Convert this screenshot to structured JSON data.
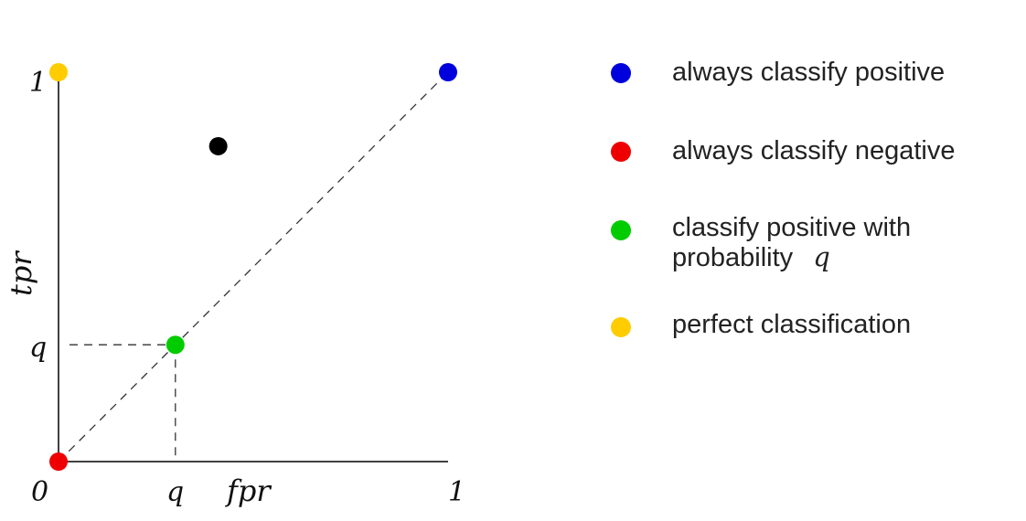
{
  "axes": {
    "x_label": "fpr",
    "y_label": "tpr",
    "x_ticks": {
      "origin": "0",
      "q": "q",
      "max": "1"
    },
    "y_ticks": {
      "q": "q",
      "max": "1"
    }
  },
  "points": [
    {
      "name": "always-classify-negative",
      "fpr": 0,
      "tpr": 0,
      "color": "#ee0000"
    },
    {
      "name": "classify-positive-with-probability-q",
      "fpr": 0.3,
      "tpr": 0.3,
      "color": "#00cc00"
    },
    {
      "name": "always-classify-positive",
      "fpr": 1,
      "tpr": 1,
      "color": "#0000dd"
    },
    {
      "name": "perfect-classification",
      "fpr": 0,
      "tpr": 1,
      "color": "#ffcc00"
    },
    {
      "name": "example-classifier",
      "fpr": 0.41,
      "tpr": 0.81,
      "color": "#000000"
    }
  ],
  "legend": {
    "items": [
      {
        "text": "always classify positive",
        "color": "#0000dd"
      },
      {
        "text": "always classify negative",
        "color": "#ee0000"
      },
      {
        "text_line1": "classify positive with",
        "text_line2": "probability",
        "suffix": "q",
        "color": "#00cc00"
      },
      {
        "text": "perfect classification",
        "color": "#ffcc00"
      }
    ]
  }
}
